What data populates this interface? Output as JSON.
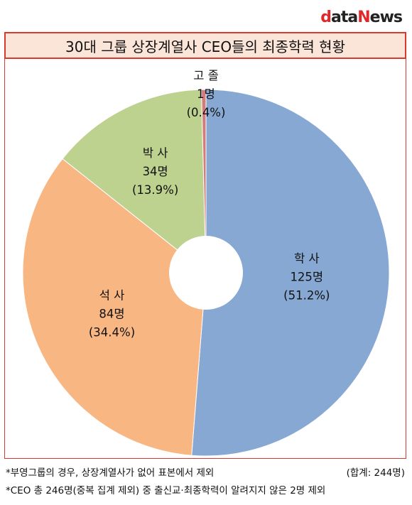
{
  "logo": {
    "d": "d",
    "ata": "ata",
    "n": "N",
    "ews": "ews"
  },
  "title": "30대 그룹 상장계열사 CEO들의 최종학력 현황",
  "chart_data": {
    "type": "pie",
    "donut": true,
    "slices": [
      {
        "name": "학 사",
        "count": "125명",
        "percent": "(51.2%)",
        "value": 51.2,
        "color": "#86a8d3"
      },
      {
        "name": "석 사",
        "count": "84명",
        "percent": "(34.4%)",
        "value": 34.4,
        "color": "#f8b683"
      },
      {
        "name": "박 사",
        "count": "34명",
        "percent": "(13.9%)",
        "value": 13.9,
        "color": "#bdd28f"
      },
      {
        "name": "고 졸",
        "count": "1명",
        "percent": "(0.4%)",
        "value": 0.4,
        "color": "#d47b7b"
      }
    ]
  },
  "notes": {
    "note1": "*부영그룹의 경우, 상장계열사가 없어 표본에서 제외",
    "total": "(합계: 244명)",
    "note2": "*CEO 총 246명(중복 집계 제외) 중 출신교·최종학력이 알려지지 않은 2명 제외"
  }
}
